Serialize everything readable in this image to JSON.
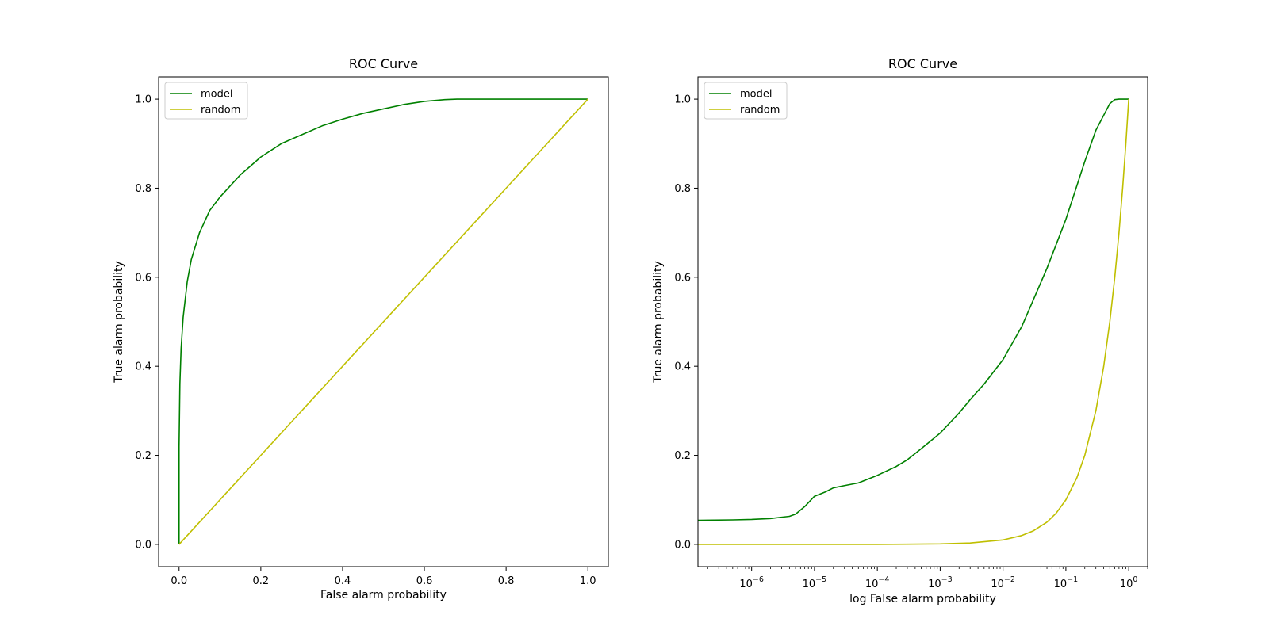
{
  "colors": {
    "model": "#008000",
    "random": "#bfbf00",
    "axes": "#000000",
    "legend_border": "#cccccc"
  },
  "chart_data": [
    {
      "type": "line",
      "title": "ROC Curve",
      "xlabel": "False alarm probability",
      "ylabel": "True alarm probability",
      "xscale": "linear",
      "xlim": [
        -0.05,
        1.05
      ],
      "ylim": [
        -0.05,
        1.05
      ],
      "xticks": [
        0.0,
        0.2,
        0.4,
        0.6,
        0.8,
        1.0
      ],
      "xtick_labels": [
        "0.0",
        "0.2",
        "0.4",
        "0.6",
        "0.8",
        "1.0"
      ],
      "yticks": [
        0.0,
        0.2,
        0.4,
        0.6,
        0.8,
        1.0
      ],
      "ytick_labels": [
        "0.0",
        "0.2",
        "0.4",
        "0.6",
        "0.8",
        "1.0"
      ],
      "grid": false,
      "legend": {
        "position": "upper-left",
        "entries": [
          "model",
          "random"
        ]
      },
      "series": [
        {
          "name": "model",
          "color": "#008000",
          "x": [
            0.0,
            0.0,
            0.002,
            0.005,
            0.01,
            0.02,
            0.03,
            0.05,
            0.075,
            0.1,
            0.15,
            0.2,
            0.25,
            0.3,
            0.35,
            0.4,
            0.45,
            0.5,
            0.55,
            0.6,
            0.65,
            0.68,
            0.75,
            0.85,
            0.95,
            1.0
          ],
          "y": [
            0.0,
            0.22,
            0.36,
            0.44,
            0.51,
            0.59,
            0.64,
            0.7,
            0.75,
            0.78,
            0.83,
            0.87,
            0.9,
            0.92,
            0.94,
            0.955,
            0.968,
            0.978,
            0.988,
            0.995,
            0.999,
            1.0,
            1.0,
            1.0,
            1.0,
            1.0
          ]
        },
        {
          "name": "random",
          "color": "#bfbf00",
          "x": [
            0.0,
            1.0
          ],
          "y": [
            0.0,
            1.0
          ]
        }
      ]
    },
    {
      "type": "line",
      "title": "ROC Curve",
      "xlabel": "log False alarm probability",
      "ylabel": "True alarm probability",
      "xscale": "log",
      "xlim": [
        1.4e-07,
        2.0
      ],
      "ylim": [
        -0.05,
        1.05
      ],
      "xticks": [
        1e-06,
        1e-05,
        0.0001,
        0.001,
        0.01,
        0.1,
        1
      ],
      "xtick_labels": [
        {
          "base": "10",
          "exp": "−6"
        },
        {
          "base": "10",
          "exp": "−5"
        },
        {
          "base": "10",
          "exp": "−4"
        },
        {
          "base": "10",
          "exp": "−3"
        },
        {
          "base": "10",
          "exp": "−2"
        },
        {
          "base": "10",
          "exp": "−1"
        },
        {
          "base": "10",
          "exp": "0"
        }
      ],
      "yticks": [
        0.0,
        0.2,
        0.4,
        0.6,
        0.8,
        1.0
      ],
      "ytick_labels": [
        "0.0",
        "0.2",
        "0.4",
        "0.6",
        "0.8",
        "1.0"
      ],
      "grid": false,
      "legend": {
        "position": "upper-left",
        "entries": [
          "model",
          "random"
        ]
      },
      "series": [
        {
          "name": "model",
          "color": "#008000",
          "x": [
            1.4e-07,
            5e-07,
            1e-06,
            2e-06,
            3e-06,
            4e-06,
            5e-06,
            7e-06,
            1e-05,
            1.5e-05,
            2e-05,
            3e-05,
            5e-05,
            0.0001,
            0.0002,
            0.0003,
            0.0005,
            0.001,
            0.002,
            0.003,
            0.005,
            0.01,
            0.02,
            0.05,
            0.1,
            0.2,
            0.3,
            0.5,
            0.6,
            0.7,
            1.0
          ],
          "y": [
            0.054,
            0.055,
            0.056,
            0.058,
            0.061,
            0.063,
            0.068,
            0.085,
            0.108,
            0.118,
            0.127,
            0.132,
            0.138,
            0.155,
            0.175,
            0.19,
            0.215,
            0.25,
            0.295,
            0.325,
            0.36,
            0.415,
            0.49,
            0.62,
            0.73,
            0.86,
            0.93,
            0.99,
            0.999,
            1.0,
            1.0
          ]
        },
        {
          "name": "random",
          "color": "#bfbf00",
          "x": [
            1.4e-07,
            1e-05,
            0.0001,
            0.001,
            0.003,
            0.01,
            0.02,
            0.03,
            0.05,
            0.07,
            0.1,
            0.15,
            0.2,
            0.3,
            0.4,
            0.5,
            0.6,
            0.7,
            0.8,
            0.9,
            1.0
          ],
          "y": [
            0.0,
            0.0,
            0.0,
            0.001,
            0.003,
            0.01,
            0.02,
            0.03,
            0.05,
            0.07,
            0.1,
            0.15,
            0.2,
            0.3,
            0.4,
            0.5,
            0.6,
            0.7,
            0.8,
            0.9,
            1.0
          ]
        }
      ]
    }
  ]
}
